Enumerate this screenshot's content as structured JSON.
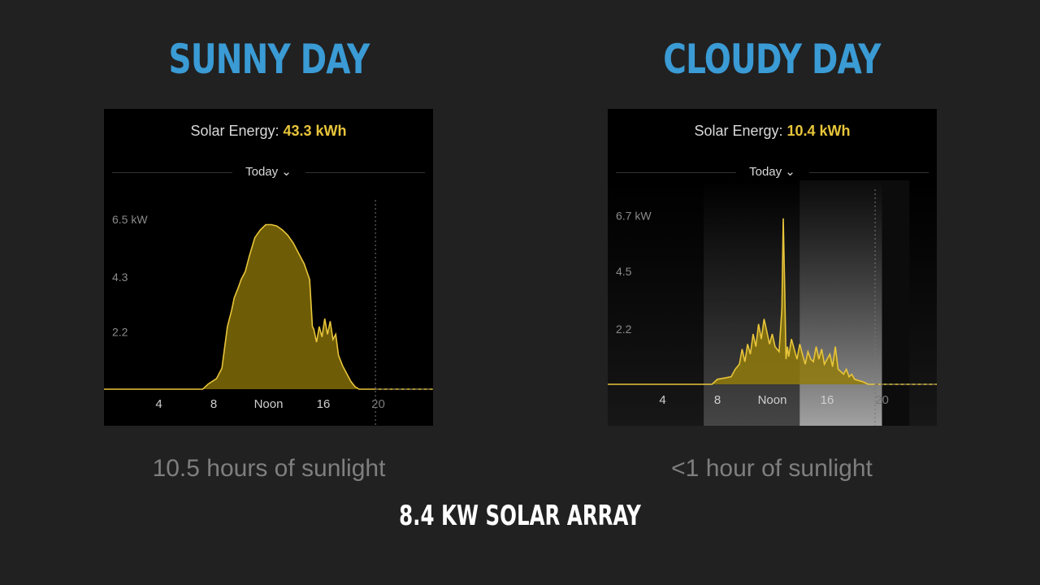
{
  "headings": {
    "sunny": "SUNNY DAY",
    "cloudy": "CLOUDY DAY"
  },
  "colors": {
    "heading": "#3a9bd5",
    "accent": "#e8c53a",
    "fill": "#6e5c07",
    "fill_bright": "#8f7a0c"
  },
  "captions": {
    "sunny": "10.5 hours of sunlight",
    "cloudy": "<1 hour of sunlight"
  },
  "footer": "8.4 KW SOLAR ARRAY",
  "panels": {
    "sunny": {
      "energy_label": "Solar Energy:",
      "energy_value": "43.3 kWh",
      "period": "Today ⌄"
    },
    "cloudy": {
      "energy_label": "Solar Energy:",
      "energy_value": "10.4 kWh",
      "period": "Today ⌄"
    }
  },
  "chart_data": [
    {
      "type": "area",
      "title": "Solar Energy: 43.3 kWh",
      "ylabel": "kW",
      "xlim": [
        0,
        24
      ],
      "ylim": [
        0,
        7
      ],
      "x_ticks": [
        4,
        8,
        12,
        16,
        20
      ],
      "x_tick_labels": [
        "4",
        "8",
        "Noon",
        "16",
        "20"
      ],
      "y_ticks": [
        2.2,
        4.3,
        6.5
      ],
      "y_tick_labels": [
        "2.2",
        "4.3",
        "6.5 kW"
      ],
      "now_marker": 19.8,
      "x": [
        0,
        7.2,
        7.6,
        8.2,
        8.6,
        8.8,
        9.0,
        9.3,
        9.5,
        9.8,
        10.0,
        10.3,
        10.6,
        11.0,
        11.4,
        11.8,
        12.2,
        12.6,
        13.0,
        13.4,
        13.8,
        14.2,
        14.6,
        15.0,
        15.2,
        15.3,
        15.5,
        15.7,
        15.9,
        16.1,
        16.3,
        16.5,
        16.7,
        16.9,
        17.1,
        17.4,
        17.7,
        18.0,
        18.3,
        18.6,
        24
      ],
      "y": [
        0,
        0,
        0.2,
        0.4,
        0.8,
        1.6,
        2.4,
        3.0,
        3.5,
        3.9,
        4.2,
        4.5,
        5.1,
        5.8,
        6.1,
        6.3,
        6.3,
        6.25,
        6.1,
        5.9,
        5.6,
        5.2,
        4.8,
        4.2,
        2.4,
        2.3,
        1.8,
        2.4,
        2.0,
        2.7,
        2.1,
        2.6,
        1.9,
        2.1,
        1.3,
        0.9,
        0.6,
        0.3,
        0.1,
        0,
        0
      ]
    },
    {
      "type": "area",
      "title": "Solar Energy: 10.4 kWh",
      "ylabel": "kW",
      "xlim": [
        0,
        24
      ],
      "ylim": [
        0,
        7.5
      ],
      "x_ticks": [
        4,
        8,
        12,
        16,
        20
      ],
      "x_tick_labels": [
        "4",
        "8",
        "Noon",
        "16",
        "20"
      ],
      "y_ticks": [
        2.2,
        4.5,
        6.7
      ],
      "y_tick_labels": [
        "2.2",
        "4.5",
        "6.7 kW"
      ],
      "now_marker": 19.5,
      "x": [
        0,
        7.6,
        8.0,
        8.5,
        9.0,
        9.3,
        9.6,
        9.8,
        10.0,
        10.2,
        10.4,
        10.6,
        10.8,
        11.0,
        11.2,
        11.4,
        11.6,
        11.8,
        12.0,
        12.2,
        12.5,
        12.7,
        12.8,
        12.9,
        13.0,
        13.1,
        13.2,
        13.4,
        13.6,
        13.8,
        14.0,
        14.2,
        14.4,
        14.6,
        14.8,
        15.0,
        15.2,
        15.4,
        15.6,
        15.8,
        16.0,
        16.2,
        16.4,
        16.6,
        16.8,
        17.0,
        17.2,
        17.4,
        17.6,
        17.8,
        18.0,
        18.3,
        18.6,
        19.0,
        24
      ],
      "y": [
        0,
        0,
        0.2,
        0.25,
        0.3,
        0.6,
        0.8,
        1.4,
        0.9,
        1.6,
        1.2,
        2.0,
        1.5,
        2.4,
        1.8,
        2.6,
        2.1,
        1.6,
        2.0,
        1.5,
        1.3,
        3.0,
        6.6,
        4.0,
        1.0,
        1.5,
        1.1,
        1.8,
        1.4,
        1.0,
        1.6,
        1.2,
        0.8,
        1.3,
        1.0,
        0.9,
        1.5,
        1.0,
        1.4,
        0.8,
        1.0,
        1.2,
        0.7,
        1.5,
        0.6,
        0.5,
        0.4,
        0.6,
        0.3,
        0.4,
        0.2,
        0.15,
        0.1,
        0,
        0
      ]
    }
  ]
}
